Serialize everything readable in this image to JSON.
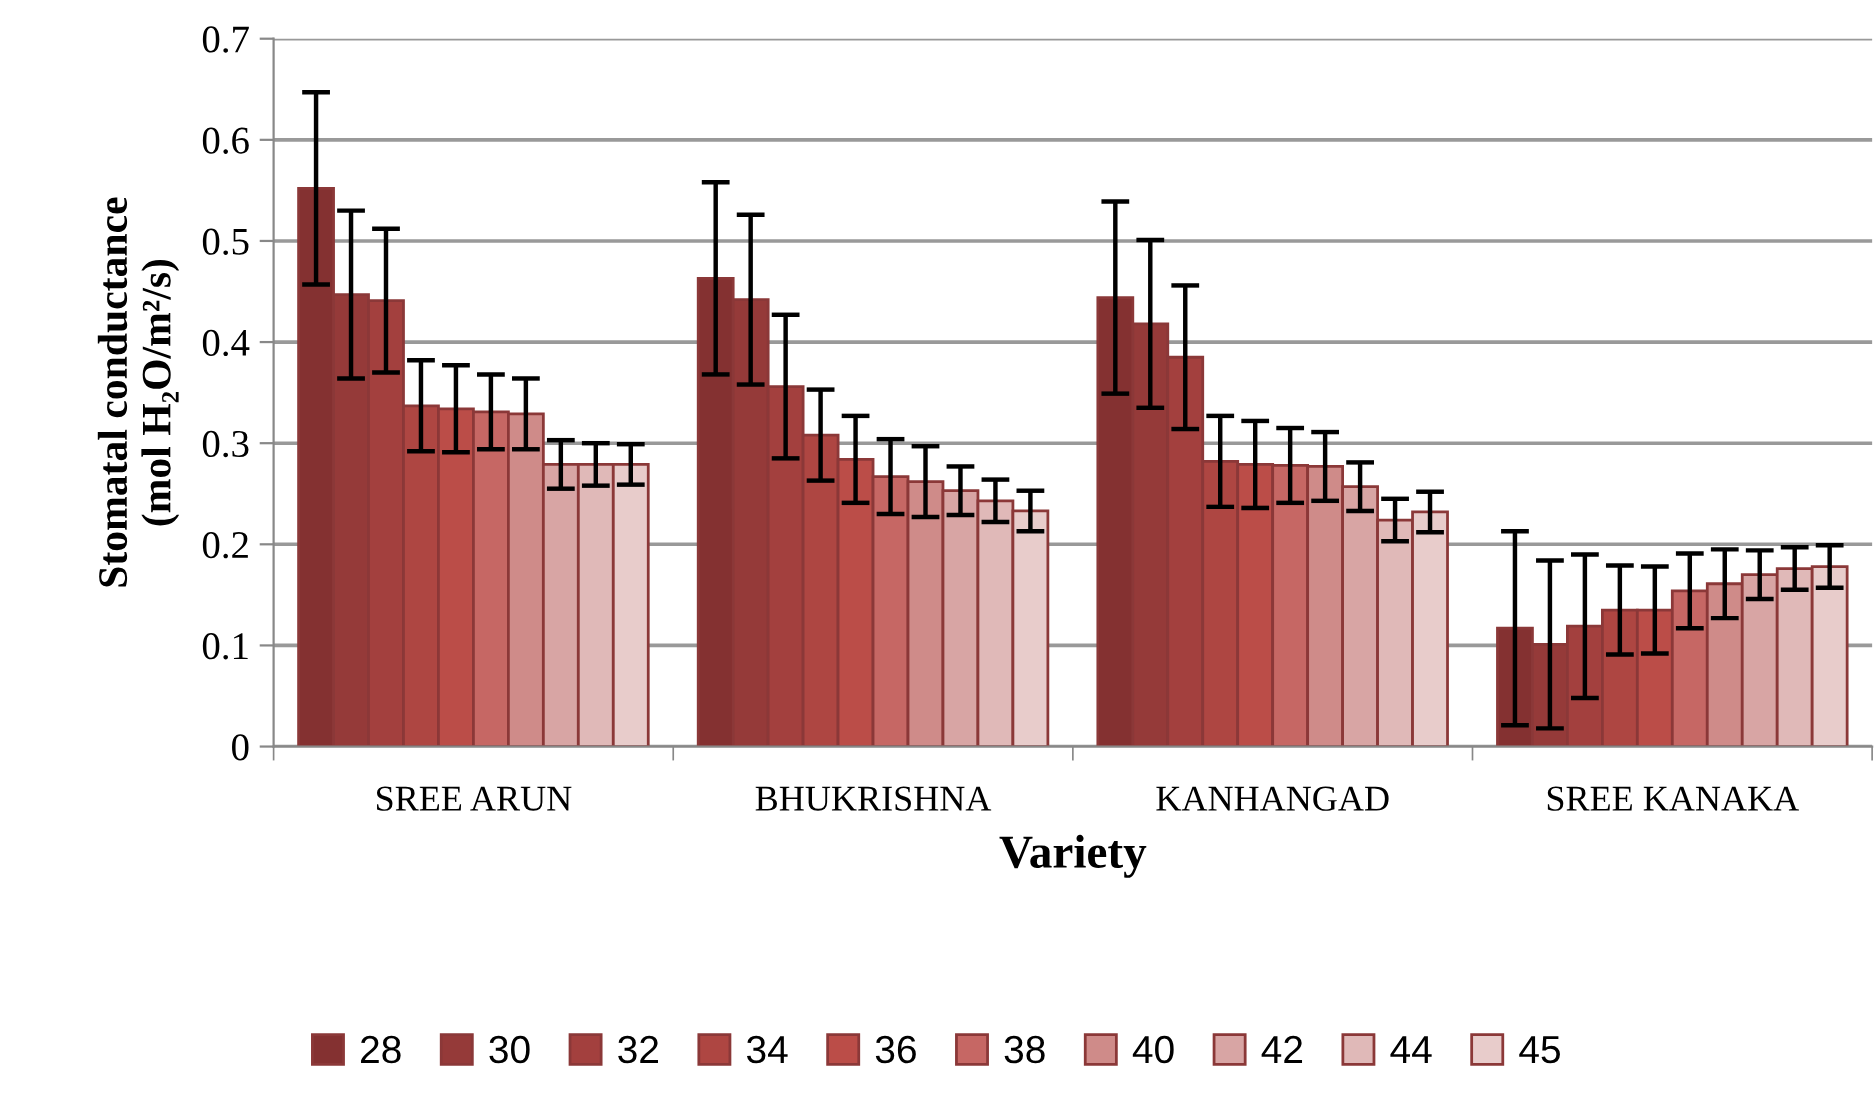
{
  "chart_data": {
    "type": "bar",
    "xlabel": "Variety",
    "ylabel": "Stomatal conductance\n(mol H₂O/m²/s)",
    "categories": [
      "SREE ARUN",
      "BHUKRISHNA",
      "KANHANGAD",
      "SREE KANAKA"
    ],
    "ylim": [
      0,
      0.7
    ],
    "yticks": [
      0,
      0.1,
      0.2,
      0.3,
      0.4,
      0.5,
      0.6,
      0.7
    ],
    "grid": "y",
    "legend": "bottom",
    "series": [
      {
        "name": "28",
        "color": "#843131",
        "values": [
          0.552,
          0.463,
          0.444,
          0.117
        ],
        "errors": [
          0.095,
          0.095,
          0.095,
          0.096
        ]
      },
      {
        "name": "30",
        "color": "#953a39",
        "values": [
          0.447,
          0.442,
          0.418,
          0.101
        ],
        "errors": [
          0.083,
          0.084,
          0.083,
          0.083
        ]
      },
      {
        "name": "32",
        "color": "#a3403e",
        "values": [
          0.441,
          0.356,
          0.385,
          0.119
        ],
        "errors": [
          0.071,
          0.071,
          0.071,
          0.071
        ]
      },
      {
        "name": "34",
        "color": "#ae4642",
        "values": [
          0.337,
          0.308,
          0.282,
          0.135
        ],
        "errors": [
          0.045,
          0.045,
          0.045,
          0.044
        ]
      },
      {
        "name": "36",
        "color": "#bb4d48",
        "values": [
          0.334,
          0.284,
          0.279,
          0.135
        ],
        "errors": [
          0.043,
          0.043,
          0.043,
          0.043
        ]
      },
      {
        "name": "38",
        "color": "#c66764",
        "values": [
          0.331,
          0.267,
          0.278,
          0.154
        ],
        "errors": [
          0.037,
          0.037,
          0.037,
          0.037
        ]
      },
      {
        "name": "40",
        "color": "#cf8b89",
        "values": [
          0.329,
          0.262,
          0.277,
          0.161
        ],
        "errors": [
          0.035,
          0.035,
          0.034,
          0.034
        ]
      },
      {
        "name": "42",
        "color": "#d8a5a4",
        "values": [
          0.279,
          0.253,
          0.257,
          0.17
        ],
        "errors": [
          0.024,
          0.024,
          0.024,
          0.024
        ]
      },
      {
        "name": "44",
        "color": "#e0b9b8",
        "values": [
          0.279,
          0.243,
          0.224,
          0.176
        ],
        "errors": [
          0.021,
          0.021,
          0.021,
          0.021
        ]
      },
      {
        "name": "45",
        "color": "#e8cccb",
        "values": [
          0.279,
          0.233,
          0.232,
          0.178
        ],
        "errors": [
          0.02,
          0.02,
          0.02,
          0.021
        ]
      }
    ]
  }
}
